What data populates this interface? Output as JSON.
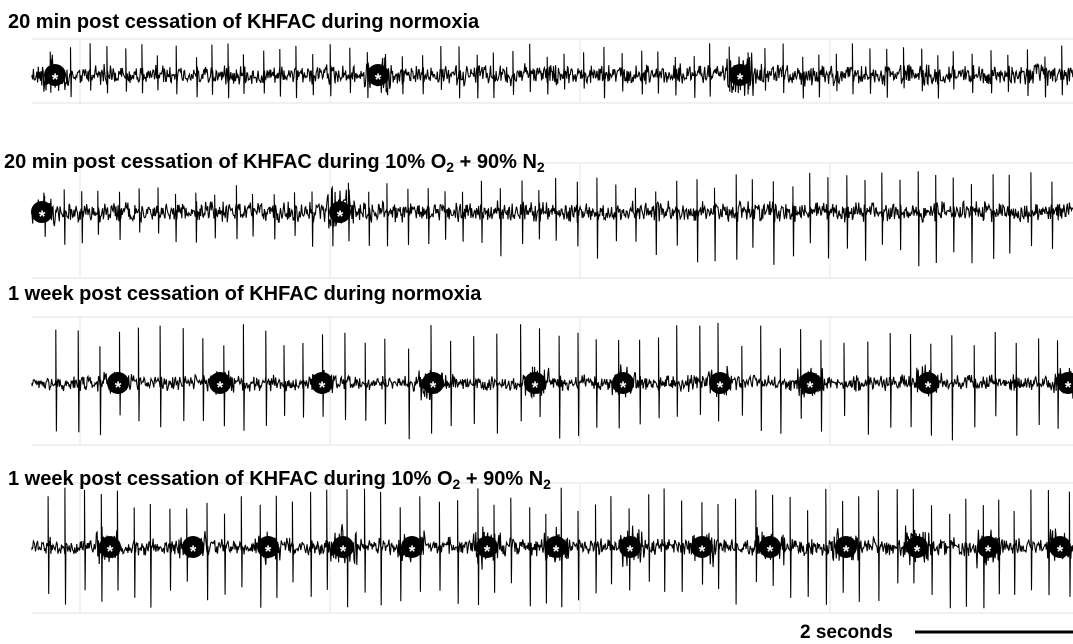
{
  "panels": [
    {
      "title": [
        {
          "text": "20 min post cessation of KHFAC during normoxia"
        }
      ],
      "marker": "*"
    },
    {
      "title": [
        {
          "text": "20 min post cessation of KHFAC during 10% O"
        },
        {
          "text": "2",
          "sub": true
        },
        {
          "text": " + 90% N"
        },
        {
          "text": "2",
          "sub": true
        }
      ],
      "marker": "*"
    },
    {
      "title": [
        {
          "text": "1 week post cessation of KHFAC during normoxia"
        }
      ],
      "marker": "*"
    },
    {
      "title": [
        {
          "text": "1 week post cessation of KHFAC during 10% O"
        },
        {
          "text": "2",
          "sub": true
        },
        {
          "text": " + 90% N"
        },
        {
          "text": "2",
          "sub": true
        }
      ],
      "marker": "*"
    }
  ],
  "scale_bar": {
    "label": "2 seconds"
  }
}
